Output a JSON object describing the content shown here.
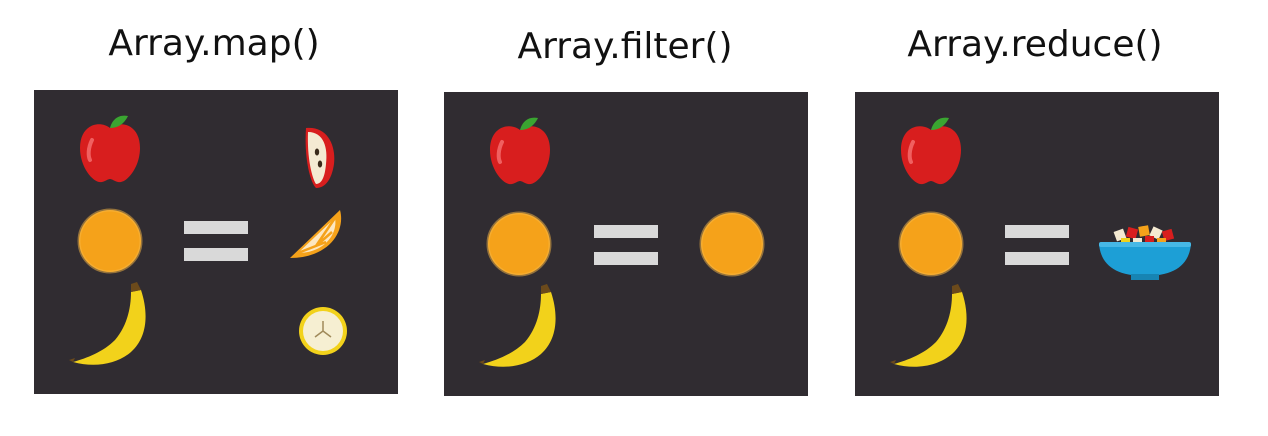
{
  "panels": [
    {
      "title": "Array.map()",
      "inputs": [
        "apple-icon",
        "orange-icon",
        "banana-icon"
      ],
      "operator": "equals-sign",
      "outputs": [
        "apple-slice-icon",
        "orange-slice-icon",
        "banana-slice-icon"
      ]
    },
    {
      "title": "Array.filter()",
      "inputs": [
        "apple-icon",
        "orange-icon",
        "banana-icon"
      ],
      "operator": "equals-sign",
      "outputs": [
        "orange-icon"
      ]
    },
    {
      "title": "Array.reduce()",
      "inputs": [
        "apple-icon",
        "orange-icon",
        "banana-icon"
      ],
      "operator": "equals-sign",
      "outputs": [
        "fruit-salad-bowl-icon"
      ]
    }
  ],
  "colors": {
    "panel_background": "#302c31",
    "apple": "#d81e1e",
    "orange": "#f5a21a",
    "banana": "#f2d21b",
    "equals": "#d9d9d9",
    "bowl": "#1d9fd6"
  }
}
